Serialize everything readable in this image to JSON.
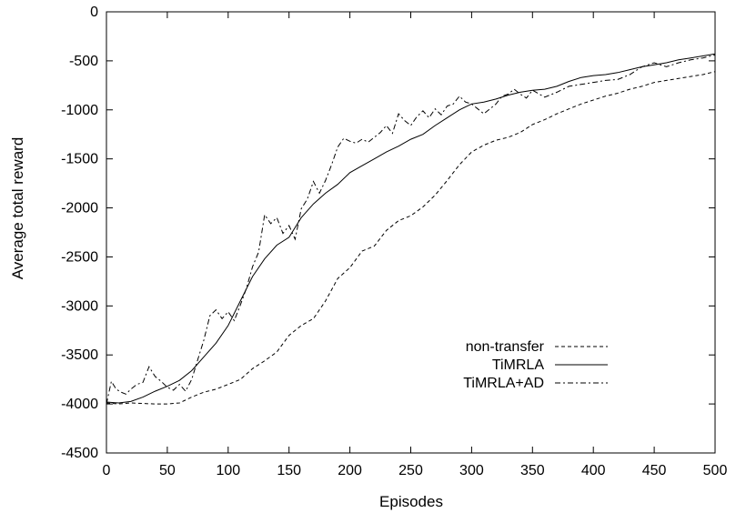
{
  "chart_data": {
    "type": "line",
    "title": "",
    "xlabel": "Episodes",
    "ylabel": "Average total reward",
    "xlim": [
      0,
      500
    ],
    "ylim": [
      -4500,
      0
    ],
    "xticks": [
      0,
      50,
      100,
      150,
      200,
      250,
      300,
      350,
      400,
      450,
      500
    ],
    "yticks": [
      0,
      -500,
      -1000,
      -1500,
      -2000,
      -2500,
      -3000,
      -3500,
      -4000,
      -4500
    ],
    "grid": false,
    "legend_position": "bottom-right",
    "series": [
      {
        "name": "non-transfer",
        "style": "dashed",
        "color": "#000000",
        "x": [
          0,
          10,
          20,
          30,
          40,
          50,
          60,
          70,
          80,
          90,
          100,
          110,
          120,
          130,
          140,
          150,
          160,
          170,
          180,
          190,
          200,
          210,
          220,
          230,
          240,
          250,
          260,
          270,
          280,
          290,
          300,
          310,
          320,
          330,
          340,
          350,
          360,
          370,
          380,
          390,
          400,
          410,
          420,
          430,
          440,
          450,
          460,
          470,
          480,
          490,
          500
        ],
        "y": [
          -3990,
          -4000,
          -3990,
          -3995,
          -4000,
          -4000,
          -3990,
          -3930,
          -3880,
          -3850,
          -3800,
          -3750,
          -3640,
          -3560,
          -3470,
          -3300,
          -3200,
          -3130,
          -2950,
          -2720,
          -2610,
          -2440,
          -2390,
          -2230,
          -2130,
          -2080,
          -1990,
          -1870,
          -1720,
          -1560,
          -1430,
          -1360,
          -1310,
          -1280,
          -1230,
          -1150,
          -1100,
          -1040,
          -990,
          -940,
          -900,
          -860,
          -830,
          -790,
          -760,
          -720,
          -700,
          -680,
          -660,
          -640,
          -610
        ]
      },
      {
        "name": "TiMRLA",
        "style": "solid",
        "color": "#000000",
        "x": [
          0,
          10,
          20,
          30,
          40,
          50,
          60,
          70,
          80,
          90,
          100,
          110,
          120,
          130,
          140,
          150,
          160,
          170,
          180,
          190,
          200,
          210,
          220,
          230,
          240,
          250,
          260,
          270,
          280,
          290,
          300,
          310,
          320,
          330,
          340,
          350,
          360,
          370,
          380,
          390,
          400,
          410,
          420,
          430,
          440,
          450,
          460,
          470,
          480,
          490,
          500
        ],
        "y": [
          -3980,
          -3990,
          -3975,
          -3930,
          -3870,
          -3820,
          -3760,
          -3660,
          -3520,
          -3380,
          -3200,
          -2950,
          -2700,
          -2520,
          -2380,
          -2300,
          -2100,
          -1960,
          -1850,
          -1760,
          -1640,
          -1570,
          -1500,
          -1430,
          -1370,
          -1300,
          -1250,
          -1160,
          -1080,
          -1000,
          -940,
          -920,
          -890,
          -850,
          -820,
          -800,
          -790,
          -760,
          -710,
          -670,
          -650,
          -640,
          -620,
          -590,
          -560,
          -540,
          -520,
          -490,
          -470,
          -450,
          -430
        ]
      },
      {
        "name": "TiMRLA+AD",
        "style": "dash-dot",
        "color": "#000000",
        "x": [
          0,
          4,
          8,
          12,
          16,
          20,
          25,
          30,
          35,
          40,
          45,
          50,
          55,
          60,
          65,
          70,
          75,
          80,
          85,
          90,
          95,
          100,
          105,
          110,
          115,
          120,
          125,
          130,
          135,
          140,
          145,
          150,
          155,
          160,
          165,
          170,
          175,
          180,
          185,
          190,
          195,
          200,
          205,
          210,
          215,
          220,
          225,
          230,
          235,
          240,
          245,
          250,
          255,
          260,
          265,
          270,
          275,
          280,
          285,
          290,
          295,
          300,
          305,
          310,
          315,
          320,
          325,
          330,
          335,
          340,
          345,
          350,
          360,
          370,
          380,
          390,
          400,
          410,
          420,
          430,
          440,
          450,
          460,
          470,
          480,
          490,
          500
        ],
        "y": [
          -4000,
          -3770,
          -3850,
          -3880,
          -3900,
          -3850,
          -3800,
          -3780,
          -3620,
          -3720,
          -3770,
          -3830,
          -3860,
          -3800,
          -3870,
          -3750,
          -3550,
          -3350,
          -3100,
          -3040,
          -3130,
          -3060,
          -3150,
          -2990,
          -2820,
          -2600,
          -2450,
          -2070,
          -2160,
          -2100,
          -2260,
          -2180,
          -2320,
          -2010,
          -1910,
          -1730,
          -1850,
          -1720,
          -1560,
          -1380,
          -1290,
          -1320,
          -1340,
          -1300,
          -1330,
          -1280,
          -1230,
          -1160,
          -1240,
          -1040,
          -1110,
          -1160,
          -1070,
          -1010,
          -1080,
          -990,
          -1050,
          -960,
          -940,
          -860,
          -920,
          -940,
          -990,
          -1040,
          -990,
          -940,
          -860,
          -840,
          -790,
          -840,
          -880,
          -800,
          -870,
          -820,
          -760,
          -740,
          -720,
          -700,
          -690,
          -640,
          -560,
          -520,
          -560,
          -520,
          -490,
          -470,
          -440
        ]
      }
    ]
  }
}
